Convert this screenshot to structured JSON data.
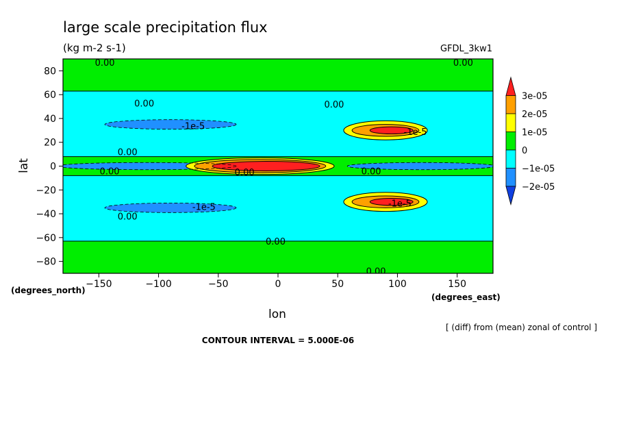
{
  "chart_data": {
    "type": "heatmap",
    "title": "large scale precipitation flux",
    "subtitle": "(kg m-2 s-1)",
    "model_label": "GFDL_3kw1",
    "xlabel": "lon",
    "ylabel": "lat",
    "x_unit": "(degrees_east)",
    "y_unit": "(degrees_north)",
    "xlim": [
      -180,
      180
    ],
    "ylim": [
      -90,
      90
    ],
    "x_ticks": [
      -150,
      -100,
      -50,
      0,
      50,
      100,
      150
    ],
    "y_ticks": [
      -80,
      -60,
      -40,
      -20,
      0,
      20,
      40,
      60,
      80
    ],
    "note": "[ (diff) from (mean) zonal of control ]",
    "contour_interval": "CONTOUR INTERVAL = 5.000E-06",
    "grid": false,
    "legend": {
      "position": "right",
      "levels": [
        "3e-05",
        "2e-05",
        "1e-05",
        "0",
        "-1e-05",
        "-2e-05"
      ],
      "colors": [
        "#ff2020",
        "#ffa000",
        "#ffff00",
        "#00ee00",
        "#00ffff",
        "#2090ff",
        "#1040e0"
      ]
    },
    "regions": [
      {
        "kind": "band",
        "y": [
          -90,
          -63
        ],
        "value": 0,
        "color": "#00ee00"
      },
      {
        "kind": "band",
        "y": [
          -63,
          -8
        ],
        "value": -5e-06,
        "color": "#00ffff"
      },
      {
        "kind": "band",
        "y": [
          -8,
          8
        ],
        "value": 0,
        "color": "#00ee00"
      },
      {
        "kind": "band",
        "y": [
          8,
          63
        ],
        "value": -5e-06,
        "color": "#00ffff"
      },
      {
        "kind": "band",
        "y": [
          63,
          90
        ],
        "value": 0,
        "color": "#00ee00"
      },
      {
        "kind": "blob",
        "cx": -90,
        "cy": 35,
        "rx": 55,
        "ry": 4,
        "value": -1e-05,
        "color": "#2090ff"
      },
      {
        "kind": "blob",
        "cx": -90,
        "cy": -35,
        "rx": 55,
        "ry": 4,
        "value": -1e-05,
        "color": "#2090ff"
      },
      {
        "kind": "blob",
        "cx": -110,
        "cy": 0,
        "rx": 75,
        "ry": 3,
        "value": -1.5e-05,
        "color": "#2090ff"
      },
      {
        "kind": "blob",
        "cx": 120,
        "cy": 0,
        "rx": 62,
        "ry": 3,
        "value": -1.5e-05,
        "color": "#2090ff"
      },
      {
        "kind": "blob",
        "cx": -15,
        "cy": 0,
        "rx": 62,
        "ry": 7,
        "value": 1e-05,
        "color": "#ffff00"
      },
      {
        "kind": "blob",
        "cx": -15,
        "cy": 0,
        "rx": 55,
        "ry": 5.5,
        "value": 2e-05,
        "color": "#ffa000"
      },
      {
        "kind": "blob",
        "cx": -10,
        "cy": 0,
        "rx": 45,
        "ry": 4,
        "value": 3e-05,
        "color": "#ff2020"
      },
      {
        "kind": "blob",
        "cx": 90,
        "cy": 30,
        "rx": 35,
        "ry": 8,
        "value": 1e-05,
        "color": "#ffff00"
      },
      {
        "kind": "blob",
        "cx": 90,
        "cy": 30,
        "rx": 28,
        "ry": 5,
        "value": 2e-05,
        "color": "#ffa000"
      },
      {
        "kind": "blob",
        "cx": 95,
        "cy": 30,
        "rx": 18,
        "ry": 3,
        "value": 3e-05,
        "color": "#ff2020"
      },
      {
        "kind": "blob",
        "cx": 90,
        "cy": -30,
        "rx": 35,
        "ry": 8,
        "value": 1e-05,
        "color": "#ffff00"
      },
      {
        "kind": "blob",
        "cx": 90,
        "cy": -30,
        "rx": 28,
        "ry": 5,
        "value": 2e-05,
        "color": "#ffa000"
      },
      {
        "kind": "blob",
        "cx": 95,
        "cy": -30,
        "rx": 18,
        "ry": 3,
        "value": 3e-05,
        "color": "#ff2020"
      }
    ],
    "contour_labels": [
      {
        "text": "0.00",
        "x": -145,
        "y": 87
      },
      {
        "text": "0.00",
        "x": 155,
        "y": 87
      },
      {
        "text": "0.00",
        "x": -112,
        "y": 53
      },
      {
        "text": "0.00",
        "x": 47,
        "y": 52
      },
      {
        "text": "-1e-5",
        "x": -71,
        "y": 34
      },
      {
        "text": "0.00",
        "x": -126,
        "y": 12
      },
      {
        "text": "-1e-5",
        "x": 115,
        "y": 29
      },
      {
        "text": "0.00",
        "x": -141,
        "y": -4
      },
      {
        "text": "0.00",
        "x": -28,
        "y": -5
      },
      {
        "text": "0.00",
        "x": 78,
        "y": -4
      },
      {
        "text": "-1e-5",
        "x": -62,
        "y": -34
      },
      {
        "text": "0.00",
        "x": -126,
        "y": -42
      },
      {
        "text": "-1e-5",
        "x": 102,
        "y": -31
      },
      {
        "text": "0.00",
        "x": -2,
        "y": -63
      },
      {
        "text": "0.00",
        "x": 82,
        "y": -88
      }
    ]
  }
}
